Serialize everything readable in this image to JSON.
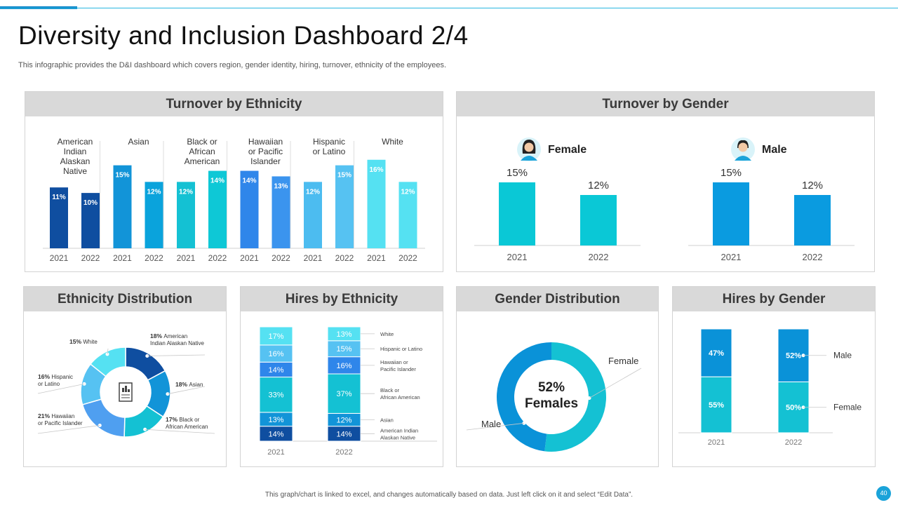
{
  "page": {
    "title": "Diversity and Inclusion Dashboard 2/4",
    "subtitle": "This infographic provides the D&I dashboard which covers region, gender identity, hiring, turnover,  ethnicity of the employees.",
    "footer": "This graph/chart is linked to excel, and changes automatically based on data. Just left click on it and select “Edit Data”.",
    "page_number": "40"
  },
  "panels": {
    "turnover_ethnicity": "Turnover by Ethnicity",
    "turnover_gender": "Turnover by Gender",
    "ethnicity_distribution": "Ethnicity Distribution",
    "hires_ethnicity": "Hires by Ethnicity",
    "gender_distribution": "Gender Distribution",
    "hires_gender": "Hires by Gender"
  },
  "chart_data": [
    {
      "id": "turnover_ethnicity",
      "type": "bar",
      "title": "Turnover by Ethnicity",
      "groups": [
        {
          "label": "American Indian Alaskan Native",
          "label_lines": [
            "American",
            "Indian",
            "Alaskan",
            "Native"
          ],
          "years": [
            "2021",
            "2022"
          ],
          "values": [
            11,
            10
          ],
          "labels": [
            "11%",
            "10%"
          ],
          "colors": [
            "#0f4ea0",
            "#0f4ea0"
          ]
        },
        {
          "label": "Asian",
          "label_lines": [
            "Asian"
          ],
          "years": [
            "2021",
            "2022"
          ],
          "values": [
            15,
            12
          ],
          "labels": [
            "15%",
            "12%"
          ],
          "colors": [
            "#1294d8",
            "#0aa3dc"
          ]
        },
        {
          "label": "Black or African American",
          "label_lines": [
            "Black or",
            "African",
            "American"
          ],
          "years": [
            "2021",
            "2022"
          ],
          "values": [
            12,
            14
          ],
          "labels": [
            "12%",
            "14%"
          ],
          "colors": [
            "#14c1d3",
            "#0ec8d6"
          ]
        },
        {
          "label": "Hawaiian or Pacific Islander",
          "label_lines": [
            "Hawaiian",
            "or Pacific",
            "Islander"
          ],
          "years": [
            "2021",
            "2022"
          ],
          "values": [
            14,
            13
          ],
          "labels": [
            "14%",
            "13%"
          ],
          "colors": [
            "#2f86ea",
            "#3b94ee"
          ]
        },
        {
          "label": "Hispanic or Latino",
          "label_lines": [
            "Hispanic",
            "or Latino"
          ],
          "years": [
            "2021",
            "2022"
          ],
          "values": [
            12,
            15
          ],
          "labels": [
            "12%",
            "15%"
          ],
          "colors": [
            "#4cbcf0",
            "#56c2f2"
          ]
        },
        {
          "label": "White",
          "label_lines": [
            "White"
          ],
          "years": [
            "2021",
            "2022"
          ],
          "values": [
            16,
            12
          ],
          "labels": [
            "16%",
            "12%"
          ],
          "colors": [
            "#55e1f2",
            "#55e1f2"
          ]
        }
      ],
      "ylim": [
        0,
        18
      ]
    },
    {
      "id": "turnover_gender",
      "type": "bar",
      "title": "Turnover by Gender",
      "groups": [
        {
          "label": "Female",
          "icon": "female-avatar-icon",
          "categories": [
            "2021",
            "2022"
          ],
          "values": [
            15,
            12
          ],
          "labels": [
            "15%",
            "12%"
          ],
          "color": "#0ac8d6"
        },
        {
          "label": "Male",
          "icon": "male-avatar-icon",
          "categories": [
            "2021",
            "2022"
          ],
          "values": [
            15,
            12
          ],
          "labels": [
            "15%",
            "12%"
          ],
          "color": "#0a9be0"
        }
      ],
      "ylim": [
        0,
        18
      ]
    },
    {
      "id": "ethnicity_distribution",
      "type": "pie",
      "donut": true,
      "title": "Ethnicity Distribution",
      "slices": [
        {
          "name": "American Indian Alaskan Native",
          "value": 18,
          "pct": "18%",
          "desc": [
            "American",
            "Indian Alaskan Native"
          ],
          "color": "#0f4ea0"
        },
        {
          "name": "Asian",
          "value": 18,
          "pct": "18%",
          "desc": [
            "Asian"
          ],
          "color": "#1294d8"
        },
        {
          "name": "Black or African American",
          "value": 17,
          "pct": "17%",
          "desc": [
            "Black or",
            "African American"
          ],
          "color": "#14c1d3"
        },
        {
          "name": "Hawaiian or Pacific Islander",
          "value": 21,
          "pct": "21%",
          "desc": [
            "Hawaiian",
            "or Pacific Islander"
          ],
          "color": "#4f9ff0"
        },
        {
          "name": "Hispanic or Latino",
          "value": 16,
          "pct": "16%",
          "desc": [
            "Hispanic",
            "or Latino"
          ],
          "color": "#56c2f2"
        },
        {
          "name": "White",
          "value": 15,
          "pct": "15%",
          "desc": [
            "White"
          ],
          "color": "#55e1f2"
        }
      ]
    },
    {
      "id": "hires_ethnicity",
      "type": "bar",
      "stacked": true,
      "title": "Hires by Ethnicity",
      "categories": [
        "2021",
        "2022"
      ],
      "series": [
        {
          "name": "American Indian Alaskan Native",
          "legend_lines": [
            "American Indian",
            "Alaskan Native"
          ],
          "values": [
            14,
            14
          ],
          "labels": [
            "14%",
            "14%"
          ],
          "color": "#0f4ea0"
        },
        {
          "name": "Asian",
          "legend_lines": [
            "Asian"
          ],
          "values": [
            13,
            12
          ],
          "labels": [
            "13%",
            "12%"
          ],
          "color": "#1294d8"
        },
        {
          "name": "Black or African American",
          "legend_lines": [
            "Black or",
            "African American"
          ],
          "values": [
            33,
            37
          ],
          "labels": [
            "33%",
            "37%"
          ],
          "color": "#14c1d3"
        },
        {
          "name": "Hawaiian or Pacific Islander",
          "legend_lines": [
            "Hawaiian or",
            "Pacific Islander"
          ],
          "values": [
            14,
            16
          ],
          "labels": [
            "14%",
            "16%"
          ],
          "color": "#2f86ea"
        },
        {
          "name": "Hispanic or Latino",
          "legend_lines": [
            "Hispanic or Latino"
          ],
          "values": [
            16,
            15
          ],
          "labels": [
            "16%",
            "15%"
          ],
          "color": "#56c2f2"
        },
        {
          "name": "White",
          "legend_lines": [
            "White"
          ],
          "values": [
            17,
            13
          ],
          "labels": [
            "17%",
            "13%"
          ],
          "color": "#55e1f2"
        }
      ]
    },
    {
      "id": "gender_distribution",
      "type": "pie",
      "donut": true,
      "title": "Gender Distribution",
      "center_value": "52%",
      "center_label": "Females",
      "slices": [
        {
          "name": "Female",
          "value": 52,
          "color": "#14c1d3"
        },
        {
          "name": "Male",
          "value": 48,
          "color": "#0a92d8"
        }
      ]
    },
    {
      "id": "hires_gender",
      "type": "bar",
      "stacked": true,
      "title": "Hires by Gender",
      "categories": [
        "2021",
        "2022"
      ],
      "series": [
        {
          "name": "Female",
          "values": [
            55,
            50
          ],
          "labels": [
            "55%",
            "50%"
          ],
          "color": "#14c1d3"
        },
        {
          "name": "Male",
          "values": [
            47,
            52
          ],
          "labels": [
            "47%",
            "52%"
          ],
          "color": "#0a92d8"
        }
      ]
    }
  ]
}
